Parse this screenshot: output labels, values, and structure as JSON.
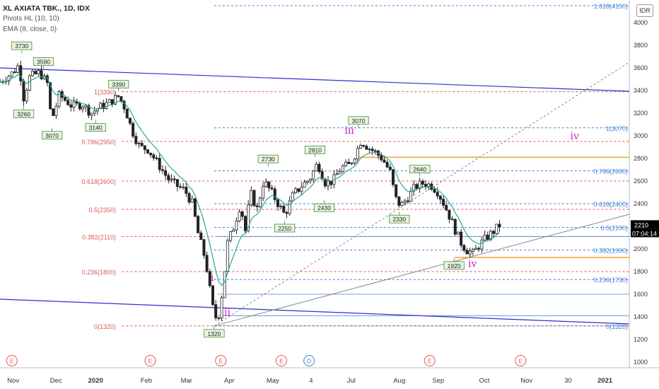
{
  "header": {
    "title": "XL AXIATA TBK., 1D, IDX",
    "indicator1": "Pivots HL (10, 10)",
    "indicator2": "EMA (8, close, 0)",
    "currency": "IDR"
  },
  "price_tag": {
    "price": "2210",
    "countdown": "07:04:14"
  },
  "colors": {
    "candle": "#222222",
    "ema": "#26a69a",
    "fib_red": "#e05656",
    "fib_blue": "#3f7fd9",
    "channel": "#2f2fd0",
    "trendline": "#888888",
    "wave": "#cc22cc",
    "orange": "#f0a030",
    "pivot_fill": "#e8f5e0",
    "event_red": "#e05656",
    "event_blue": "#3f7fd9"
  },
  "chart_data": {
    "type": "candlestick",
    "y_axis": {
      "min": 900,
      "max": 4300,
      "ticks": [
        "4000",
        "3800",
        "3600",
        "3400",
        "3200",
        "3000",
        "2800",
        "2600",
        "2400",
        "2200",
        "2000",
        "1800",
        "1600",
        "1400",
        "1200",
        "1000"
      ]
    },
    "x_axis": {
      "ticks": [
        {
          "label": "Nov",
          "t": 0.02
        },
        {
          "label": "Dec",
          "t": 0.085
        },
        {
          "label": "2020",
          "t": 0.145
        },
        {
          "label": "Feb",
          "t": 0.222
        },
        {
          "label": "Mar",
          "t": 0.283
        },
        {
          "label": "Apr",
          "t": 0.348
        },
        {
          "label": "May",
          "t": 0.414
        },
        {
          "label": "4",
          "t": 0.472
        },
        {
          "label": "Jul",
          "t": 0.533
        },
        {
          "label": "Aug",
          "t": 0.606
        },
        {
          "label": "Sep",
          "t": 0.665
        },
        {
          "label": "Oct",
          "t": 0.735
        },
        {
          "label": "Nov",
          "t": 0.799
        },
        {
          "label": "30",
          "t": 0.862
        },
        {
          "label": "2021",
          "t": 0.918
        }
      ]
    },
    "candles_close_path": [
      {
        "t": 0.0,
        "p": 3480
      },
      {
        "t": 0.02,
        "p": 3560
      },
      {
        "t": 0.03,
        "p": 3640
      },
      {
        "t": 0.034,
        "p": 3300
      },
      {
        "t": 0.045,
        "p": 3520
      },
      {
        "t": 0.06,
        "p": 3560
      },
      {
        "t": 0.072,
        "p": 3460
      },
      {
        "t": 0.078,
        "p": 3130
      },
      {
        "t": 0.09,
        "p": 3360
      },
      {
        "t": 0.11,
        "p": 3260
      },
      {
        "t": 0.125,
        "p": 3280
      },
      {
        "t": 0.138,
        "p": 3200
      },
      {
        "t": 0.15,
        "p": 3250
      },
      {
        "t": 0.165,
        "p": 3290
      },
      {
        "t": 0.18,
        "p": 3350
      },
      {
        "t": 0.19,
        "p": 3240
      },
      {
        "t": 0.2,
        "p": 3050
      },
      {
        "t": 0.212,
        "p": 2900
      },
      {
        "t": 0.225,
        "p": 2880
      },
      {
        "t": 0.24,
        "p": 2750
      },
      {
        "t": 0.255,
        "p": 2620
      },
      {
        "t": 0.268,
        "p": 2560
      },
      {
        "t": 0.28,
        "p": 2520
      },
      {
        "t": 0.292,
        "p": 2400
      },
      {
        "t": 0.3,
        "p": 2150
      },
      {
        "t": 0.312,
        "p": 1900
      },
      {
        "t": 0.322,
        "p": 1500
      },
      {
        "t": 0.33,
        "p": 1350
      },
      {
        "t": 0.338,
        "p": 1650
      },
      {
        "t": 0.345,
        "p": 2050
      },
      {
        "t": 0.355,
        "p": 2200
      },
      {
        "t": 0.365,
        "p": 2400
      },
      {
        "t": 0.372,
        "p": 2150
      },
      {
        "t": 0.38,
        "p": 2500
      },
      {
        "t": 0.39,
        "p": 2350
      },
      {
        "t": 0.4,
        "p": 2600
      },
      {
        "t": 0.412,
        "p": 2500
      },
      {
        "t": 0.42,
        "p": 2420
      },
      {
        "t": 0.432,
        "p": 2300
      },
      {
        "t": 0.445,
        "p": 2480
      },
      {
        "t": 0.458,
        "p": 2560
      },
      {
        "t": 0.47,
        "p": 2620
      },
      {
        "t": 0.482,
        "p": 2760
      },
      {
        "t": 0.494,
        "p": 2580
      },
      {
        "t": 0.505,
        "p": 2600
      },
      {
        "t": 0.518,
        "p": 2720
      },
      {
        "t": 0.53,
        "p": 2740
      },
      {
        "t": 0.54,
        "p": 2850
      },
      {
        "t": 0.548,
        "p": 2960
      },
      {
        "t": 0.558,
        "p": 2900
      },
      {
        "t": 0.568,
        "p": 2860
      },
      {
        "t": 0.58,
        "p": 2800
      },
      {
        "t": 0.592,
        "p": 2680
      },
      {
        "t": 0.6,
        "p": 2450
      },
      {
        "t": 0.608,
        "p": 2380
      },
      {
        "t": 0.618,
        "p": 2450
      },
      {
        "t": 0.63,
        "p": 2550
      },
      {
        "t": 0.642,
        "p": 2580
      },
      {
        "t": 0.655,
        "p": 2560
      },
      {
        "t": 0.665,
        "p": 2500
      },
      {
        "t": 0.675,
        "p": 2380
      },
      {
        "t": 0.685,
        "p": 2250
      },
      {
        "t": 0.692,
        "p": 2150
      },
      {
        "t": 0.7,
        "p": 2050
      },
      {
        "t": 0.708,
        "p": 1990
      },
      {
        "t": 0.718,
        "p": 1960
      },
      {
        "t": 0.728,
        "p": 2040
      },
      {
        "t": 0.738,
        "p": 2100
      },
      {
        "t": 0.748,
        "p": 2150
      },
      {
        "t": 0.758,
        "p": 2210
      }
    ],
    "pivots": [
      {
        "label": "3730",
        "t": 0.033,
        "p": 3730,
        "pos": "above"
      },
      {
        "label": "3590",
        "t": 0.066,
        "p": 3590,
        "pos": "above"
      },
      {
        "label": "3260",
        "t": 0.036,
        "p": 3260,
        "pos": "below"
      },
      {
        "label": "3070",
        "t": 0.079,
        "p": 3070,
        "pos": "below"
      },
      {
        "label": "3140",
        "t": 0.145,
        "p": 3140,
        "pos": "below"
      },
      {
        "label": "3390",
        "t": 0.18,
        "p": 3390,
        "pos": "above"
      },
      {
        "label": "1320",
        "t": 0.325,
        "p": 1320,
        "pos": "below"
      },
      {
        "label": "2730",
        "t": 0.407,
        "p": 2730,
        "pos": "above"
      },
      {
        "label": "2250",
        "t": 0.432,
        "p": 2250,
        "pos": "below"
      },
      {
        "label": "2810",
        "t": 0.478,
        "p": 2810,
        "pos": "above"
      },
      {
        "label": "2430",
        "t": 0.492,
        "p": 2430,
        "pos": "below"
      },
      {
        "label": "3070",
        "t": 0.544,
        "p": 3070,
        "pos": "above"
      },
      {
        "label": "2330",
        "t": 0.606,
        "p": 2330,
        "pos": "below"
      },
      {
        "label": "2640",
        "t": 0.637,
        "p": 2640,
        "pos": "above"
      },
      {
        "label": "1920",
        "t": 0.689,
        "p": 1920,
        "pos": "below"
      }
    ],
    "fib_left": [
      {
        "label": "1(3390)",
        "p": 3390
      },
      {
        "label": "0.786(2950)",
        "p": 2950
      },
      {
        "label": "0.618(2600)",
        "p": 2600
      },
      {
        "label": "0.5(2350)",
        "p": 2350
      },
      {
        "label": "0.382(2110)",
        "p": 2110
      },
      {
        "label": "0.236(1800)",
        "p": 1800
      },
      {
        "label": "0(1320)",
        "p": 1320
      }
    ],
    "fib_right": [
      {
        "label": "1.618(4150)",
        "p": 4150
      },
      {
        "label": "1(3070)",
        "p": 3070
      },
      {
        "label": "0.786(2690)",
        "p": 2690
      },
      {
        "label": "0.618(2400)",
        "p": 2400
      },
      {
        "label": "0.5(2190)",
        "p": 2190
      },
      {
        "label": "0.382(1990)",
        "p": 1990
      },
      {
        "label": "0.236(1730)",
        "p": 1730
      },
      {
        "label": "0(1320)",
        "p": 1320
      }
    ],
    "waves": [
      {
        "label": "i",
        "t": 0.322,
        "p": 1720
      },
      {
        "label": "ii",
        "t": 0.345,
        "p": 1410
      },
      {
        "label": "iii",
        "t": 0.53,
        "p": 3020
      },
      {
        "label": "iv",
        "t": 0.717,
        "p": 1840
      },
      {
        "label": "iv",
        "t": 0.872,
        "p": 2970
      }
    ],
    "events": [
      {
        "label": "E",
        "t": 0.018,
        "kind": "red"
      },
      {
        "label": "E",
        "t": 0.228,
        "kind": "red"
      },
      {
        "label": "E",
        "t": 0.335,
        "kind": "red"
      },
      {
        "label": "E",
        "t": 0.427,
        "kind": "red"
      },
      {
        "label": "D",
        "t": 0.469,
        "kind": "blue"
      },
      {
        "label": "E",
        "t": 0.652,
        "kind": "red"
      },
      {
        "label": "E",
        "t": 0.79,
        "kind": "red"
      }
    ]
  }
}
